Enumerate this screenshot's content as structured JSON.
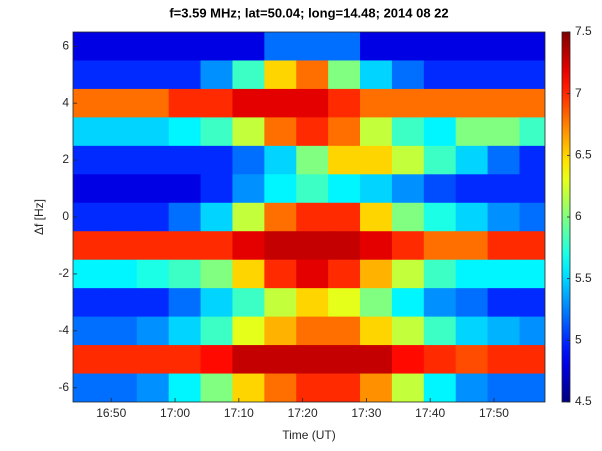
{
  "chart_data": {
    "type": "heatmap",
    "title": "f=3.59 MHz;  lat=50.04; long=14.48; 2014 08 22",
    "x_label": "Time (UT)",
    "y_label": "Δf [Hz]",
    "colormap": "jet",
    "xlim": [
      1004,
      1078
    ],
    "xticks": [
      {
        "value": 1010,
        "label": "16:50"
      },
      {
        "value": 1020,
        "label": "17:00"
      },
      {
        "value": 1030,
        "label": "17:10"
      },
      {
        "value": 1040,
        "label": "17:20"
      },
      {
        "value": 1050,
        "label": "17:30"
      },
      {
        "value": 1060,
        "label": "17:40"
      },
      {
        "value": 1070,
        "label": "17:50"
      }
    ],
    "ylim": [
      -6.5,
      6.5
    ],
    "yticks": [
      -6,
      -4,
      -2,
      0,
      2,
      4,
      6
    ],
    "clim": [
      4.5,
      7.5
    ],
    "cticks": [
      4.5,
      5,
      5.5,
      6,
      6.5,
      7,
      7.5
    ],
    "x": [
      1006.5,
      1011.5,
      1016.5,
      1021.5,
      1026.5,
      1031.5,
      1036.5,
      1041.5,
      1046.5,
      1051.5,
      1056.5,
      1061.5,
      1066.5,
      1071.5,
      1076.5
    ],
    "y": [
      6,
      5,
      4,
      3,
      2,
      1,
      0,
      -1,
      -2,
      -3,
      -4,
      -5,
      -6
    ],
    "z": [
      [
        4.8,
        4.8,
        4.8,
        4.8,
        4.8,
        4.8,
        5.2,
        5.2,
        5.2,
        4.8,
        4.8,
        4.8,
        4.8,
        4.8,
        4.8
      ],
      [
        5,
        5,
        5,
        5,
        5.3,
        5.8,
        6.5,
        6.8,
        6,
        5.5,
        5.2,
        5,
        5,
        5,
        5
      ],
      [
        6.8,
        6.8,
        6.8,
        7,
        7,
        7.2,
        7.2,
        7.2,
        7,
        6.8,
        6.8,
        6.8,
        6.8,
        6.8,
        6.8
      ],
      [
        5.5,
        5.5,
        5.5,
        5.6,
        5.8,
        6.2,
        6.8,
        7,
        6.8,
        6.2,
        5.8,
        5.6,
        6,
        6,
        5.8
      ],
      [
        5,
        5,
        5,
        5,
        5,
        5.2,
        5.5,
        6,
        6.5,
        6.5,
        6.2,
        5.8,
        5.5,
        5.2,
        5
      ],
      [
        4.8,
        4.8,
        4.8,
        4.8,
        5,
        5.3,
        5.6,
        5.8,
        5.6,
        5.5,
        5.3,
        5.1,
        5,
        5,
        5
      ],
      [
        5,
        5,
        5,
        5.2,
        5.5,
        6.2,
        6.8,
        7,
        7,
        6.5,
        6,
        5.7,
        5.5,
        5.3,
        5.2
      ],
      [
        7,
        7,
        7,
        7,
        7,
        7.2,
        7.3,
        7.3,
        7.3,
        7.2,
        7,
        6.8,
        6.8,
        7,
        7
      ],
      [
        5.6,
        5.6,
        5.7,
        5.8,
        6,
        6.5,
        7,
        7.2,
        7,
        6.6,
        6.2,
        5.8,
        5.6,
        5.6,
        5.6
      ],
      [
        5,
        5,
        5,
        5.2,
        5.5,
        5.8,
        6.2,
        6.5,
        6.3,
        6,
        5.6,
        5.3,
        5.2,
        5,
        5
      ],
      [
        5.2,
        5.2,
        5.3,
        5.5,
        5.8,
        6.3,
        6.6,
        6.8,
        6.8,
        6.5,
        6.2,
        5.8,
        5.5,
        5.4,
        5.3
      ],
      [
        7,
        7,
        7,
        7,
        7.1,
        7.3,
        7.3,
        7.3,
        7.3,
        7.3,
        7.1,
        7,
        6.9,
        7,
        7
      ],
      [
        5.2,
        5.2,
        5.3,
        5.6,
        6,
        6.5,
        6.8,
        7,
        7,
        6.7,
        6.2,
        5.6,
        5.3,
        5.2,
        5.2
      ]
    ]
  }
}
